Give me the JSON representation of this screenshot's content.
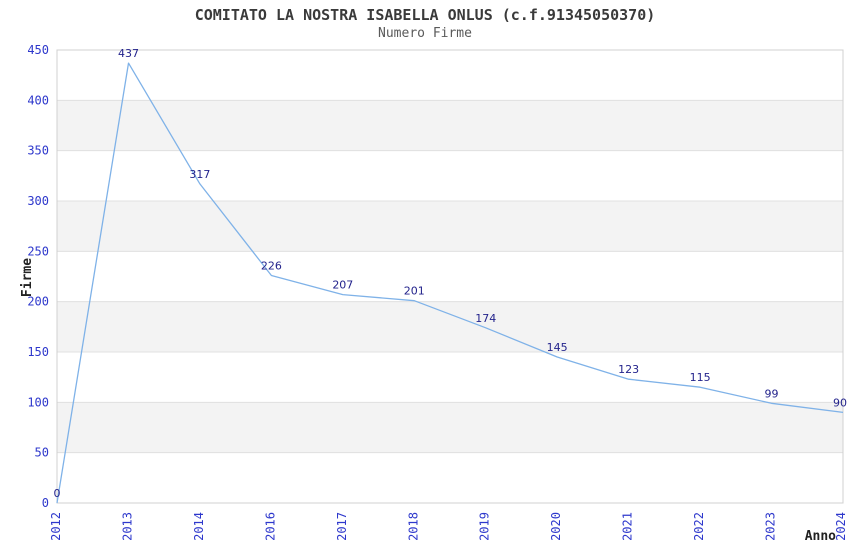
{
  "header": {
    "title": "COMITATO LA NOSTRA ISABELLA ONLUS (c.f.91345050370)",
    "subtitle": "Numero Firme"
  },
  "chart_data": {
    "type": "line",
    "title": "COMITATO LA NOSTRA ISABELLA ONLUS (c.f.91345050370)",
    "subtitle": "Numero Firme",
    "categories": [
      "2012",
      "2013",
      "2014",
      "2016",
      "2017",
      "2018",
      "2019",
      "2020",
      "2021",
      "2022",
      "2023",
      "2024"
    ],
    "values": [
      0,
      437,
      317,
      226,
      207,
      201,
      174,
      145,
      123,
      115,
      99,
      90
    ],
    "data_labels": [
      "0",
      "437",
      "317",
      "226",
      "207",
      "201",
      "174",
      "145",
      "123",
      "115",
      "99",
      "90"
    ],
    "xlabel": "Anno",
    "ylabel": "Firme",
    "ylim": [
      0,
      450
    ],
    "yticks": [
      0,
      50,
      100,
      150,
      200,
      250,
      300,
      350,
      400,
      450
    ],
    "grid": "horizontal-bands-alternating-50",
    "legend": "none",
    "x_tick_rotation": -90,
    "colors": {
      "line": "#7FB2E8",
      "data_label": "#23238C",
      "tick_label": "#2E38CC",
      "band": "#F3F3F3",
      "gridline": "#E0E0E0",
      "plot_border": "#D0D0D0",
      "title": "#3A3A3A",
      "subtitle": "#5A5A5A",
      "axis_title": "#222222",
      "background": "#FFFFFF"
    }
  }
}
